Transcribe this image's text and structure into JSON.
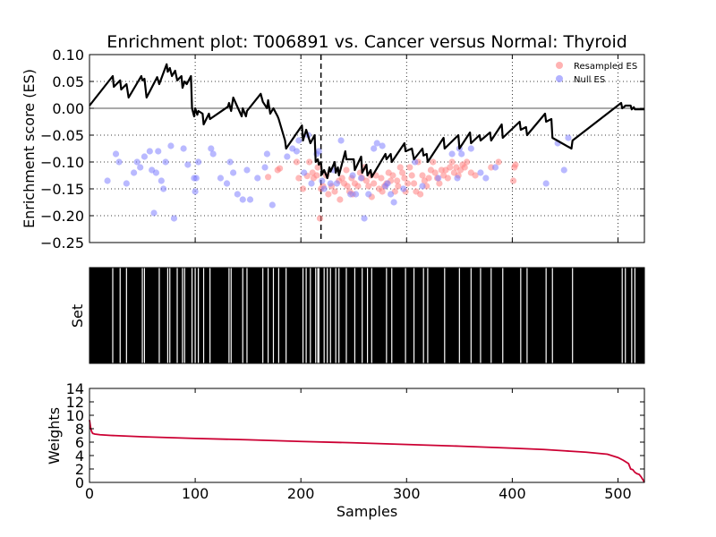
{
  "chart_data": [
    {
      "panel": "enrichment",
      "type": "line",
      "title": "Enrichment plot: T006891 vs. Cancer versus Normal: Thyroid",
      "xlabel": "",
      "ylabel": "Enrichment score (ES)",
      "xlim": [
        0,
        525
      ],
      "ylim": [
        -0.25,
        0.1
      ],
      "yticks": [
        -0.25,
        -0.2,
        -0.15,
        -0.1,
        -0.05,
        0.0,
        0.05,
        0.1
      ],
      "ytick_labels": [
        "−0.25",
        "−0.20",
        "−0.15",
        "−0.10",
        "−0.05",
        "0.00",
        "0.05",
        "0.10"
      ],
      "xticks": [
        100,
        200,
        300,
        400,
        500
      ],
      "grid": true,
      "legend_placement": "top-right",
      "vline_x": 219,
      "es_curve": {
        "color": "#000000",
        "x": [
          0,
          22,
          23,
          29,
          30,
          35,
          37,
          49,
          50,
          52,
          54,
          64,
          66,
          73,
          74,
          76,
          78,
          81,
          83,
          87,
          88,
          90,
          92,
          96,
          97,
          99,
          100,
          102,
          103,
          107,
          108,
          113,
          114,
          131,
          132,
          134,
          136,
          144,
          145,
          148,
          149,
          162,
          164,
          168,
          169,
          171,
          174,
          178,
          179,
          185,
          186,
          201,
          202,
          205,
          209,
          213,
          214,
          216,
          217,
          219,
          220,
          222,
          225,
          227,
          228,
          232,
          233,
          235,
          236,
          242,
          243,
          250,
          251,
          257,
          258,
          262,
          263,
          266,
          267,
          280,
          281,
          285,
          286,
          298,
          299,
          305,
          307,
          315,
          316,
          319,
          320,
          335,
          336,
          349,
          350,
          360,
          361,
          369,
          370,
          379,
          380,
          390,
          391,
          407,
          408,
          413,
          414,
          431,
          432,
          437,
          438,
          456,
          457,
          503,
          504,
          506,
          507,
          512,
          513,
          515,
          516,
          525
        ],
        "y": [
          0.005,
          0.06,
          0.04,
          0.052,
          0.035,
          0.045,
          0.02,
          0.06,
          0.052,
          0.055,
          0.02,
          0.058,
          0.045,
          0.082,
          0.068,
          0.075,
          0.06,
          0.07,
          0.052,
          0.06,
          0.038,
          0.05,
          0.045,
          0.06,
          0.0,
          -0.015,
          0.0,
          -0.012,
          -0.005,
          -0.01,
          -0.03,
          -0.01,
          -0.02,
          0.003,
          0.01,
          -0.005,
          0.02,
          -0.015,
          0.0,
          -0.015,
          -0.005,
          0.027,
          0.012,
          0.0,
          0.015,
          -0.01,
          0.0,
          -0.015,
          -0.02,
          -0.06,
          -0.075,
          -0.032,
          -0.06,
          -0.04,
          -0.065,
          -0.05,
          -0.1,
          -0.095,
          -0.105,
          -0.1,
          -0.123,
          -0.115,
          -0.13,
          -0.11,
          -0.118,
          -0.1,
          -0.12,
          -0.11,
          -0.125,
          -0.08,
          -0.095,
          -0.095,
          -0.115,
          -0.09,
          -0.12,
          -0.105,
          -0.125,
          -0.115,
          -0.128,
          -0.085,
          -0.095,
          -0.085,
          -0.1,
          -0.065,
          -0.08,
          -0.075,
          -0.095,
          -0.075,
          -0.088,
          -0.085,
          -0.1,
          -0.055,
          -0.075,
          -0.05,
          -0.075,
          -0.045,
          -0.065,
          -0.05,
          -0.06,
          -0.045,
          -0.06,
          -0.03,
          -0.055,
          -0.025,
          -0.04,
          -0.035,
          -0.05,
          -0.01,
          -0.025,
          -0.02,
          -0.055,
          -0.075,
          -0.06,
          0.01,
          0.0,
          0.003,
          0.005,
          0.005,
          -0.002,
          0.002,
          -0.002,
          -0.002
        ]
      },
      "series": [
        {
          "name": "Resampled ES",
          "type": "scatter",
          "color": "#ff7f7f",
          "x": [
            169,
            178,
            180,
            196,
            198,
            202,
            206,
            208,
            211,
            212,
            215,
            216,
            218,
            219,
            221,
            224,
            226,
            229,
            232,
            236,
            237,
            239,
            241,
            243,
            244,
            246,
            248,
            249,
            251,
            254,
            256,
            258,
            260,
            262,
            264,
            266,
            267,
            269,
            271,
            274,
            276,
            277,
            279,
            281,
            283,
            285,
            287,
            289,
            291,
            292,
            294,
            296,
            298,
            299,
            301,
            303,
            305,
            307,
            309,
            311,
            313,
            315,
            317,
            319,
            321,
            323,
            325,
            327,
            329,
            331,
            333,
            335,
            337,
            339,
            341,
            343,
            345,
            347,
            349,
            351,
            353,
            355,
            357,
            361,
            365,
            380,
            387,
            401,
            402,
            403
          ],
          "y": [
            -0.128,
            -0.115,
            -0.112,
            -0.1,
            -0.13,
            -0.15,
            -0.126,
            -0.1,
            -0.12,
            -0.13,
            -0.125,
            -0.11,
            -0.205,
            -0.15,
            -0.145,
            -0.125,
            -0.16,
            -0.145,
            -0.155,
            -0.135,
            -0.17,
            -0.13,
            -0.14,
            -0.115,
            -0.145,
            -0.155,
            -0.13,
            -0.16,
            -0.14,
            -0.145,
            -0.12,
            -0.13,
            -0.11,
            -0.135,
            -0.145,
            -0.125,
            -0.165,
            -0.14,
            -0.125,
            -0.15,
            -0.13,
            -0.155,
            -0.145,
            -0.14,
            -0.12,
            -0.135,
            -0.125,
            -0.155,
            -0.135,
            -0.145,
            -0.11,
            -0.12,
            -0.13,
            -0.155,
            -0.14,
            -0.11,
            -0.125,
            -0.14,
            -0.155,
            -0.1,
            -0.16,
            -0.125,
            -0.135,
            -0.145,
            -0.13,
            -0.115,
            -0.1,
            -0.12,
            -0.13,
            -0.14,
            -0.115,
            -0.125,
            -0.115,
            -0.13,
            -0.11,
            -0.1,
            -0.12,
            -0.11,
            -0.125,
            -0.115,
            -0.105,
            -0.11,
            -0.1,
            -0.12,
            -0.125,
            -0.11,
            -0.1,
            -0.135,
            -0.11,
            -0.105
          ]
        },
        {
          "name": "Null ES",
          "type": "scatter",
          "color": "#7f7fff",
          "x": [
            17,
            25,
            28,
            35,
            42,
            45,
            48,
            52,
            57,
            59,
            61,
            63,
            65,
            68,
            70,
            72,
            77,
            80,
            89,
            93,
            99,
            100,
            101,
            103,
            115,
            117,
            124,
            130,
            133,
            136,
            140,
            145,
            149,
            152,
            159,
            166,
            168,
            173,
            187,
            192,
            196,
            198,
            203,
            207,
            210,
            215,
            217,
            220,
            222,
            228,
            231,
            234,
            238,
            247,
            249,
            252,
            257,
            260,
            264,
            269,
            272,
            277,
            280,
            282,
            285,
            288,
            297,
            308,
            315,
            330,
            343,
            348,
            350,
            352,
            361,
            370,
            375,
            384,
            432,
            443,
            449,
            453
          ],
          "y": [
            -0.135,
            -0.085,
            -0.1,
            -0.14,
            -0.12,
            -0.1,
            -0.11,
            -0.09,
            -0.08,
            -0.115,
            -0.195,
            -0.12,
            -0.08,
            -0.135,
            -0.15,
            -0.1,
            -0.07,
            -0.205,
            -0.075,
            -0.105,
            -0.13,
            -0.155,
            -0.13,
            -0.1,
            -0.075,
            -0.085,
            -0.13,
            -0.14,
            -0.1,
            -0.12,
            -0.16,
            -0.17,
            -0.115,
            -0.17,
            -0.13,
            -0.11,
            -0.085,
            -0.18,
            -0.09,
            -0.075,
            -0.08,
            -0.06,
            -0.12,
            -0.05,
            -0.14,
            -0.085,
            -0.08,
            -0.135,
            -0.15,
            -0.14,
            -0.115,
            -0.14,
            -0.06,
            -0.16,
            -0.125,
            -0.16,
            -0.13,
            -0.205,
            -0.16,
            -0.075,
            -0.065,
            -0.07,
            -0.145,
            -0.14,
            -0.16,
            -0.175,
            -0.15,
            -0.1,
            -0.145,
            -0.13,
            -0.085,
            -0.13,
            -0.075,
            -0.085,
            -0.075,
            -0.12,
            -0.13,
            -0.11,
            -0.14,
            -0.065,
            -0.115,
            -0.055
          ]
        }
      ]
    },
    {
      "panel": "set",
      "type": "barcode",
      "ylabel": "Set",
      "xlim": [
        0,
        525
      ],
      "description_color_bg": "#000000",
      "gap_color": "#ffffff",
      "gaps_x": [
        22,
        29,
        35,
        50,
        52,
        66,
        74,
        76,
        83,
        88,
        90,
        97,
        100,
        103,
        108,
        114,
        132,
        134,
        145,
        149,
        164,
        169,
        174,
        179,
        186,
        202,
        205,
        209,
        214,
        216,
        217,
        222,
        225,
        228,
        233,
        236,
        243,
        251,
        258,
        263,
        267,
        281,
        286,
        299,
        307,
        316,
        320,
        336,
        350,
        361,
        370,
        380,
        391,
        408,
        414,
        432,
        438,
        457,
        504,
        507,
        513,
        516
      ]
    },
    {
      "panel": "weights",
      "type": "line",
      "xlabel": "Samples",
      "ylabel": "Weights",
      "xlim": [
        0,
        525
      ],
      "ylim": [
        0,
        14
      ],
      "yticks": [
        0,
        2,
        4,
        6,
        8,
        10,
        12,
        14
      ],
      "ytick_labels": [
        "0",
        "2",
        "4",
        "6",
        "8",
        "10",
        "12",
        "14"
      ],
      "xticks": [
        0,
        100,
        200,
        300,
        400,
        500
      ],
      "xtick_labels": [
        "0",
        "100",
        "200",
        "300",
        "400",
        "500"
      ],
      "grid": false,
      "series": [
        {
          "type": "line",
          "color": "#cc0033",
          "x": [
            0,
            1,
            2,
            3,
            5,
            10,
            20,
            50,
            100,
            150,
            200,
            250,
            300,
            350,
            400,
            430,
            450,
            470,
            490,
            500,
            505,
            510,
            512,
            514,
            516,
            518,
            520,
            522,
            524,
            525
          ],
          "y": [
            9.3,
            8.2,
            7.6,
            7.3,
            7.2,
            7.1,
            7.0,
            6.8,
            6.55,
            6.35,
            6.1,
            5.9,
            5.65,
            5.4,
            5.1,
            4.9,
            4.7,
            4.5,
            4.2,
            3.7,
            3.3,
            2.8,
            2.0,
            1.9,
            1.5,
            1.3,
            1.2,
            0.8,
            0.3,
            0.0
          ]
        }
      ]
    }
  ]
}
